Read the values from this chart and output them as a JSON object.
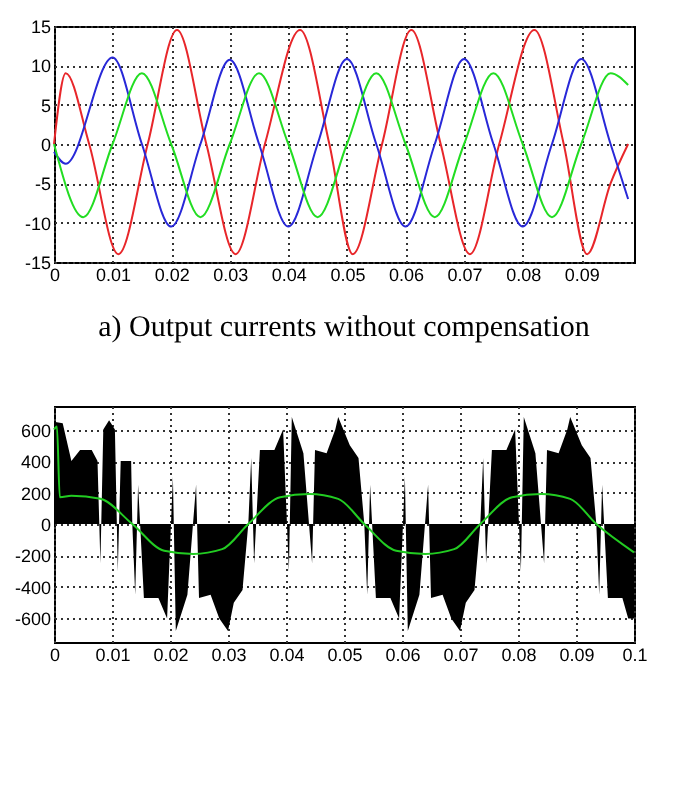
{
  "chart_data": [
    {
      "type": "line",
      "annotations": [
        "a) Output currents without compensation"
      ],
      "xlim": [
        0,
        0.099
      ],
      "xticks": [
        0,
        0.01,
        0.02,
        0.03,
        0.04,
        0.05,
        0.06,
        0.07,
        0.08,
        0.09
      ],
      "ylim": [
        -15,
        15
      ],
      "yticks": [
        -15,
        -10,
        -5,
        0,
        5,
        10,
        15
      ],
      "grid": true,
      "series": [
        {
          "color": "#e8262a",
          "x": [
            0,
            0.002,
            0.006,
            0.011,
            0.016,
            0.021,
            0.026,
            0.031,
            0.036,
            0.042,
            0.047,
            0.051,
            0.056,
            0.061,
            0.066,
            0.071,
            0.076,
            0.082,
            0.087,
            0.091,
            0.095,
            0.098
          ],
          "values": [
            0,
            9,
            0,
            -14,
            0,
            14.5,
            0,
            -14,
            0,
            14.5,
            0,
            -14,
            0,
            14.5,
            0,
            -14,
            0,
            14.5,
            0,
            -14,
            -5,
            0
          ]
        },
        {
          "color": "#2828d8",
          "x": [
            0,
            0.002,
            0.01,
            0.015,
            0.02,
            0.025,
            0.03,
            0.035,
            0.04,
            0.045,
            0.05,
            0.055,
            0.06,
            0.065,
            0.07,
            0.075,
            0.08,
            0.085,
            0.09,
            0.095,
            0.098
          ],
          "values": [
            -1,
            -2.5,
            11,
            0,
            -10.5,
            0,
            10.7,
            0,
            -10.5,
            0,
            10.8,
            0,
            -10.5,
            0,
            10.8,
            0,
            -10.5,
            0,
            10.8,
            0,
            -7
          ]
        },
        {
          "color": "#22dd22",
          "x": [
            0,
            0.005,
            0.01,
            0.015,
            0.02,
            0.025,
            0.03,
            0.035,
            0.04,
            0.045,
            0.05,
            0.055,
            0.06,
            0.065,
            0.07,
            0.075,
            0.08,
            0.085,
            0.09,
            0.095,
            0.098
          ],
          "values": [
            0,
            -9.3,
            0,
            9,
            0,
            -9.3,
            0,
            9,
            0,
            -9.3,
            0,
            9,
            0,
            -9.3,
            0,
            9,
            0,
            -9.3,
            0,
            9,
            7.5
          ]
        }
      ]
    },
    {
      "type": "line",
      "xlim": [
        0,
        0.1
      ],
      "xticks": [
        0,
        0.01,
        0.02,
        0.03,
        0.04,
        0.05,
        0.06,
        0.07,
        0.08,
        0.09,
        0.1
      ],
      "ylim": [
        -750,
        750
      ],
      "yticks": [
        -600,
        -400,
        -200,
        0,
        200,
        400,
        600
      ],
      "grid": true,
      "series": [
        {
          "type": "area",
          "color": "#000000",
          "x": [
            0,
            0.0015,
            0.003,
            0.0045,
            0.0065,
            0.0075,
            0.008,
            0.0085,
            0.0095,
            0.0105,
            0.011,
            0.0115,
            0.0133,
            0.0135,
            0.014,
            0.0145,
            0.0155,
            0.018,
            0.0195,
            0.0205,
            0.021,
            0.023,
            0.0245,
            0.025,
            0.027,
            0.0285,
            0.03,
            0.031,
            0.0325,
            0.0335,
            0.034,
            0.0345,
            0.0355,
            0.038,
            0.0395,
            0.0405,
            0.041,
            0.043,
            0.0445,
            0.045,
            0.047,
            0.0485,
            0.049,
            0.051,
            0.0525,
            0.0535,
            0.054,
            0.0545,
            0.0555,
            0.058,
            0.0595,
            0.0605,
            0.061,
            0.063,
            0.0645,
            0.065,
            0.067,
            0.0685,
            0.07,
            0.071,
            0.0725,
            0.0735,
            0.074,
            0.0745,
            0.0755,
            0.078,
            0.0795,
            0.0805,
            0.081,
            0.083,
            0.0845,
            0.085,
            0.087,
            0.0885,
            0.089,
            0.091,
            0.0925,
            0.0935,
            0.094,
            0.0945,
            0.0955,
            0.098,
            0.099,
            0.1
          ],
          "values": [
            650,
            640,
            400,
            470,
            470,
            400,
            -250,
            600,
            660,
            600,
            -300,
            400,
            400,
            0,
            -450,
            250,
            -470,
            -470,
            -600,
            300,
            -680,
            -450,
            250,
            -470,
            -450,
            -600,
            -680,
            -500,
            -420,
            0,
            420,
            -250,
            470,
            470,
            600,
            -300,
            680,
            450,
            -250,
            470,
            450,
            600,
            680,
            500,
            420,
            0,
            -450,
            250,
            -470,
            -470,
            -600,
            300,
            -680,
            -450,
            250,
            -470,
            -450,
            -600,
            -680,
            -500,
            -420,
            0,
            420,
            -250,
            470,
            470,
            600,
            -300,
            680,
            450,
            -250,
            470,
            450,
            600,
            680,
            500,
            420,
            0,
            -450,
            250,
            -470,
            -470,
            -600,
            -600
          ]
        },
        {
          "color": "#22cc22",
          "x": [
            0,
            0.0005,
            0.001,
            0.003,
            0.008,
            0.0135,
            0.019,
            0.024,
            0.029,
            0.0335,
            0.039,
            0.044,
            0.049,
            0.0535,
            0.059,
            0.064,
            0.069,
            0.0735,
            0.079,
            0.084,
            0.089,
            0.0935,
            0.1
          ],
          "values": [
            600,
            620,
            170,
            180,
            160,
            0,
            -170,
            -190,
            -160,
            0,
            170,
            190,
            160,
            0,
            -170,
            -190,
            -160,
            0,
            170,
            190,
            160,
            0,
            -180
          ]
        }
      ]
    }
  ]
}
